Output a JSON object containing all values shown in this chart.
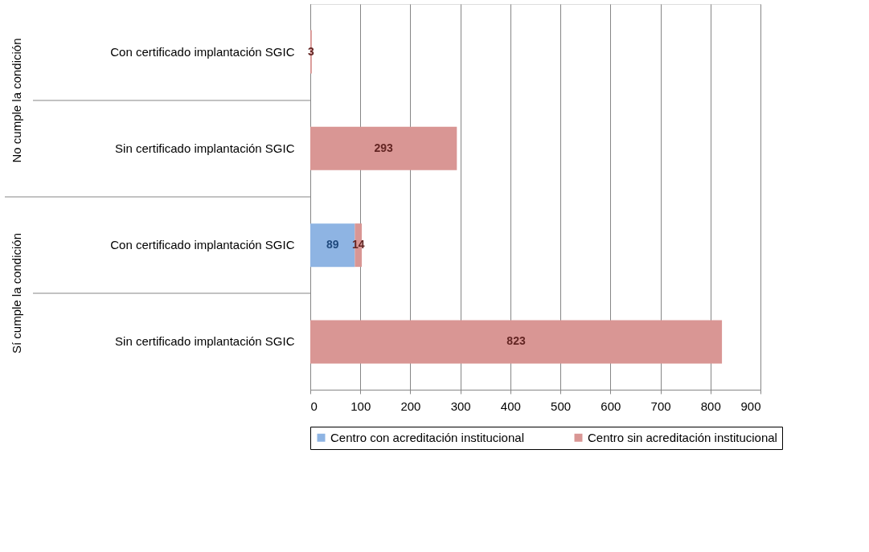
{
  "chart_data": {
    "type": "bar",
    "orientation": "horizontal",
    "stacked": true,
    "categories": [
      "Con certificado implantación SGIC",
      "Sin certificado implantación SGIC",
      "Con certificado implantación SGIC",
      "Sin certificado implantación SGIC"
    ],
    "annotations": [
      "No cumple la condición",
      "Sí cumple la condición"
    ],
    "series": [
      {
        "name": "Centro con acreditación institucional",
        "color": "#8eb4e3",
        "values": [
          null,
          null,
          89,
          null
        ]
      },
      {
        "name": "Centro sin acreditación institucional",
        "color": "#d99694",
        "values": [
          3,
          293,
          14,
          823
        ]
      }
    ],
    "xlim": [
      0,
      900
    ],
    "xticks": [
      0,
      100,
      200,
      300,
      400,
      500,
      600,
      700,
      800,
      900
    ],
    "grid": "x",
    "legend": "bottom",
    "data_labels": true
  }
}
